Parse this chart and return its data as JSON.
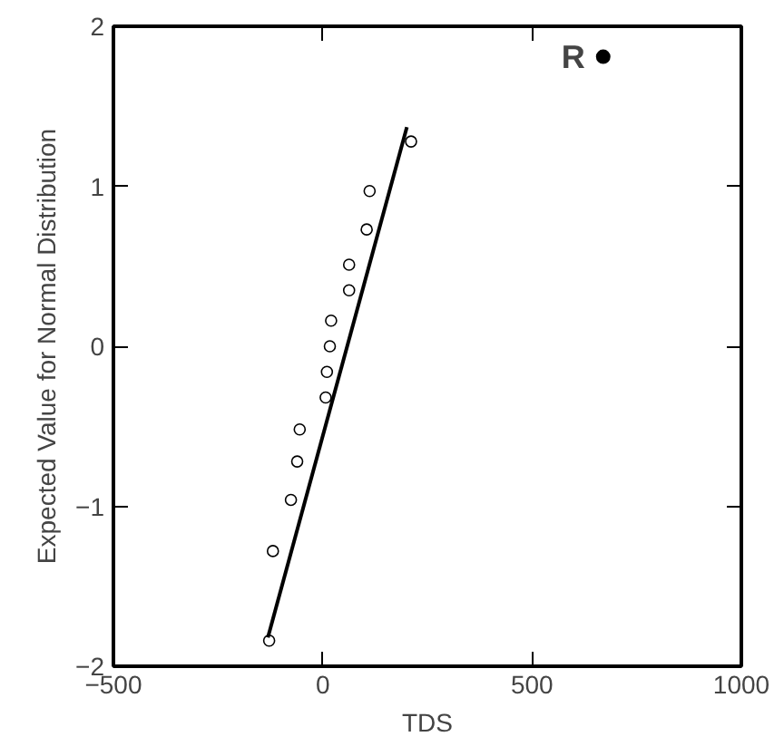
{
  "chart_data": {
    "type": "scatter",
    "xlabel": "TDS",
    "ylabel": "Expected Value for Normal Distribution",
    "xlim": [
      -500,
      1000
    ],
    "ylim": [
      -2,
      2
    ],
    "xticks": [
      -500,
      0,
      500,
      1000
    ],
    "yticks": [
      -2,
      -1,
      0,
      1,
      2
    ],
    "grid": false,
    "marker": "circle",
    "series": [
      {
        "color": "#000000",
        "x": [
          -128,
          -119,
          -76,
          -61,
          -55,
          7,
          10,
          17,
          20,
          63,
          63,
          105,
          112,
          211
        ],
        "values": [
          -1.84,
          -1.28,
          -0.96,
          -0.72,
          -0.52,
          -0.32,
          -0.16,
          0,
          0.16,
          0.35,
          0.51,
          0.73,
          0.97,
          1.28
        ]
      },
      {
        "type": "line",
        "marker": "none",
        "color": "#000000",
        "x": [
          -131,
          201
        ],
        "values": [
          -1.82,
          1.37
        ]
      }
    ],
    "annotations": [
      {
        "text": "R",
        "x": 670,
        "y": 1.81
      }
    ]
  }
}
